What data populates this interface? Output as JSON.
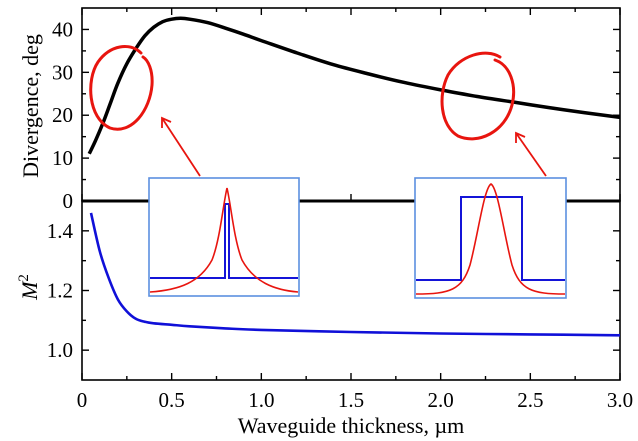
{
  "chart_data": [
    {
      "type": "line",
      "panel": "top",
      "xlabel": "Waveguide thickness, µm",
      "ylabel": "Divergence, deg",
      "xlim": [
        0,
        3.0
      ],
      "ylim": [
        0,
        45
      ],
      "yticks": [
        "0",
        "10",
        "20",
        "30",
        "40"
      ],
      "grid": false,
      "series": [
        {
          "color": "#000000",
          "x": [
            0.04,
            0.08,
            0.12,
            0.16,
            0.2,
            0.25,
            0.3,
            0.35,
            0.4,
            0.45,
            0.5,
            0.55,
            0.6,
            0.7,
            0.8,
            0.9,
            1.0,
            1.2,
            1.4,
            1.6,
            1.8,
            2.0,
            2.2,
            2.4,
            2.6,
            2.8,
            3.0
          ],
          "y": [
            11,
            14.5,
            18.5,
            23,
            27.5,
            32,
            35.5,
            38.5,
            40.5,
            41.8,
            42.4,
            42.6,
            42.4,
            41.6,
            40.3,
            38.9,
            37.4,
            34.5,
            31.8,
            29.6,
            27.6,
            25.9,
            24.4,
            23.1,
            21.8,
            20.6,
            19.5
          ]
        }
      ],
      "annotations": {
        "circle_color": "#e8150f",
        "inset_frame_color": "#5b8fe0",
        "profile_step_color": "#1414d8",
        "profile_mode_color": "#e8150f"
      }
    },
    {
      "type": "line",
      "panel": "bottom",
      "xlabel": "Waveguide thickness, µm",
      "ylabel": "M2",
      "ylabel_base": "M",
      "ylabel_sup": "2",
      "xlim": [
        0,
        3.0
      ],
      "ylim": [
        0.9,
        1.5
      ],
      "yticks": [
        "1.0",
        "1.2",
        "1.4"
      ],
      "xticks": [
        "0",
        "0.5",
        "1.0",
        "1.5",
        "2.0",
        "2.5",
        "3.0"
      ],
      "grid": false,
      "series": [
        {
          "color": "#1010d8",
          "x": [
            0.05,
            0.1,
            0.15,
            0.2,
            0.25,
            0.3,
            0.35,
            0.4,
            0.5,
            0.6,
            0.8,
            1.0,
            1.5,
            2.0,
            2.5,
            3.0
          ],
          "y": [
            1.46,
            1.33,
            1.24,
            1.17,
            1.13,
            1.105,
            1.095,
            1.09,
            1.085,
            1.08,
            1.073,
            1.068,
            1.061,
            1.056,
            1.053,
            1.05
          ]
        }
      ]
    }
  ]
}
